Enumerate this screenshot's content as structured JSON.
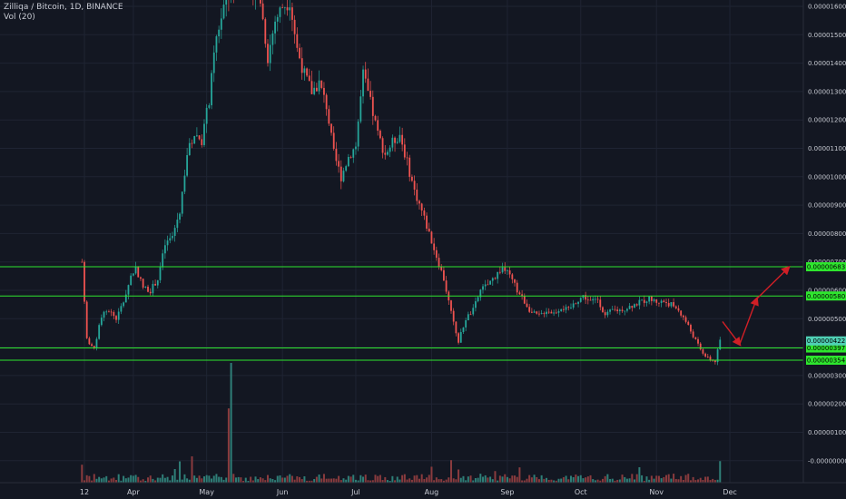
{
  "legend": {
    "title": "Zilliqa / Bitcoin, 1D, BINANCE",
    "indicator": "Vol (20)"
  },
  "colors": {
    "background": "#131722",
    "grid": "#1f2433",
    "up": "#26a69a",
    "down": "#ef5350",
    "up_volume": "#2f7f78",
    "down_volume": "#8a3b3e",
    "level_line": "#2ee62e",
    "level_label_bg": "#2ee62e",
    "current_label_bg": "#4fd0b5",
    "arrow": "#d11f26"
  },
  "chart_data": {
    "type": "candlestick",
    "symbol": "Zilliqa / Bitcoin",
    "interval": "1D",
    "exchange": "BINANCE",
    "price_axis_ticks": [
      "0.00001600",
      "0.00001500",
      "0.00001400",
      "0.00001300",
      "0.00001200",
      "0.00001100",
      "0.00001000",
      "0.00000900",
      "0.00000800",
      "0.00000700",
      "0.00000600",
      "0.00000500",
      "0.00000400",
      "0.00000300",
      "0.00000200",
      "0.00000100",
      "-0.00000000"
    ],
    "time_axis_ticks": [
      "12",
      "Apr",
      "May",
      "Jun",
      "Jul",
      "Aug",
      "Sep",
      "Oct",
      "Nov",
      "Dec"
    ],
    "horizontal_levels": [
      {
        "label": "0.00000683",
        "value": 6.83e-06
      },
      {
        "label": "0.00000580",
        "value": 5.8e-06
      },
      {
        "label": "0.00000397",
        "value": 3.97e-06
      },
      {
        "label": "0.00000354",
        "value": 3.54e-06
      }
    ],
    "current_price": {
      "label": "0.00000422",
      "value": 4.22e-06
    },
    "close_path": [
      {
        "date": "2018-03-11",
        "close": 7e-06
      },
      {
        "date": "2018-03-13",
        "close": 4.3e-06
      },
      {
        "date": "2018-03-16",
        "close": 3.9e-06
      },
      {
        "date": "2018-03-19",
        "close": 5.1e-06
      },
      {
        "date": "2018-03-22",
        "close": 5.3e-06
      },
      {
        "date": "2018-03-25",
        "close": 5e-06
      },
      {
        "date": "2018-03-28",
        "close": 5.6e-06
      },
      {
        "date": "2018-03-31",
        "close": 6.5e-06
      },
      {
        "date": "2018-04-02",
        "close": 6.8e-06
      },
      {
        "date": "2018-04-05",
        "close": 6.1e-06
      },
      {
        "date": "2018-04-08",
        "close": 6e-06
      },
      {
        "date": "2018-04-11",
        "close": 6.4e-06
      },
      {
        "date": "2018-04-14",
        "close": 7.6e-06
      },
      {
        "date": "2018-04-17",
        "close": 7.9e-06
      },
      {
        "date": "2018-04-20",
        "close": 8.8e-06
      },
      {
        "date": "2018-04-23",
        "close": 1.08e-05
      },
      {
        "date": "2018-04-26",
        "close": 1.15e-05
      },
      {
        "date": "2018-04-29",
        "close": 1.13e-05
      },
      {
        "date": "2018-05-02",
        "close": 1.27e-05
      },
      {
        "date": "2018-05-05",
        "close": 1.49e-05
      },
      {
        "date": "2018-05-08",
        "close": 1.6e-05
      },
      {
        "date": "2018-05-11",
        "close": 1.64e-05
      },
      {
        "date": "2018-05-14",
        "close": 1.68e-05
      },
      {
        "date": "2018-05-17",
        "close": 1.7e-05
      },
      {
        "date": "2018-05-20",
        "close": 1.66e-05
      },
      {
        "date": "2018-05-23",
        "close": 1.62e-05
      },
      {
        "date": "2018-05-26",
        "close": 1.42e-05
      },
      {
        "date": "2018-05-29",
        "close": 1.55e-05
      },
      {
        "date": "2018-06-01",
        "close": 1.6e-05
      },
      {
        "date": "2018-06-04",
        "close": 1.62e-05
      },
      {
        "date": "2018-06-07",
        "close": 1.45e-05
      },
      {
        "date": "2018-06-10",
        "close": 1.36e-05
      },
      {
        "date": "2018-06-13",
        "close": 1.3e-05
      },
      {
        "date": "2018-06-16",
        "close": 1.33e-05
      },
      {
        "date": "2018-06-19",
        "close": 1.25e-05
      },
      {
        "date": "2018-06-22",
        "close": 1.08e-05
      },
      {
        "date": "2018-06-25",
        "close": 1e-05
      },
      {
        "date": "2018-06-28",
        "close": 1.07e-05
      },
      {
        "date": "2018-07-01",
        "close": 1.11e-05
      },
      {
        "date": "2018-07-04",
        "close": 1.36e-05
      },
      {
        "date": "2018-07-07",
        "close": 1.26e-05
      },
      {
        "date": "2018-07-10",
        "close": 1.15e-05
      },
      {
        "date": "2018-07-13",
        "close": 1.08e-05
      },
      {
        "date": "2018-07-16",
        "close": 1.12e-05
      },
      {
        "date": "2018-07-19",
        "close": 1.15e-05
      },
      {
        "date": "2018-07-22",
        "close": 1.05e-05
      },
      {
        "date": "2018-07-25",
        "close": 9.5e-06
      },
      {
        "date": "2018-07-28",
        "close": 8.8e-06
      },
      {
        "date": "2018-07-31",
        "close": 8e-06
      },
      {
        "date": "2018-08-03",
        "close": 7.2e-06
      },
      {
        "date": "2018-08-06",
        "close": 6.4e-06
      },
      {
        "date": "2018-08-09",
        "close": 5.2e-06
      },
      {
        "date": "2018-08-12",
        "close": 4.2e-06
      },
      {
        "date": "2018-08-15",
        "close": 5e-06
      },
      {
        "date": "2018-08-18",
        "close": 5.3e-06
      },
      {
        "date": "2018-08-21",
        "close": 6e-06
      },
      {
        "date": "2018-08-24",
        "close": 6.2e-06
      },
      {
        "date": "2018-08-27",
        "close": 6.5e-06
      },
      {
        "date": "2018-08-30",
        "close": 6.8e-06
      },
      {
        "date": "2018-09-02",
        "close": 6.5e-06
      },
      {
        "date": "2018-09-05",
        "close": 6e-06
      },
      {
        "date": "2018-09-08",
        "close": 5.6e-06
      },
      {
        "date": "2018-09-11",
        "close": 5.2e-06
      },
      {
        "date": "2018-09-14",
        "close": 5.1e-06
      },
      {
        "date": "2018-09-17",
        "close": 5.3e-06
      },
      {
        "date": "2018-09-20",
        "close": 5.2e-06
      },
      {
        "date": "2018-09-23",
        "close": 5.4e-06
      },
      {
        "date": "2018-09-26",
        "close": 5.3e-06
      },
      {
        "date": "2018-09-29",
        "close": 5.6e-06
      },
      {
        "date": "2018-10-02",
        "close": 5.8e-06
      },
      {
        "date": "2018-10-05",
        "close": 5.6e-06
      },
      {
        "date": "2018-10-08",
        "close": 5.7e-06
      },
      {
        "date": "2018-10-11",
        "close": 5.1e-06
      },
      {
        "date": "2018-10-14",
        "close": 5.3e-06
      },
      {
        "date": "2018-10-17",
        "close": 5.3e-06
      },
      {
        "date": "2018-10-20",
        "close": 5.4e-06
      },
      {
        "date": "2018-10-23",
        "close": 5.5e-06
      },
      {
        "date": "2018-10-26",
        "close": 5.6e-06
      },
      {
        "date": "2018-10-29",
        "close": 5.7e-06
      },
      {
        "date": "2018-11-01",
        "close": 5.6e-06
      },
      {
        "date": "2018-11-04",
        "close": 5.6e-06
      },
      {
        "date": "2018-11-07",
        "close": 5.5e-06
      },
      {
        "date": "2018-11-10",
        "close": 5.3e-06
      },
      {
        "date": "2018-11-13",
        "close": 4.9e-06
      },
      {
        "date": "2018-11-16",
        "close": 4.4e-06
      },
      {
        "date": "2018-11-19",
        "close": 3.9e-06
      },
      {
        "date": "2018-11-22",
        "close": 3.6e-06
      },
      {
        "date": "2018-11-25",
        "close": 3.5e-06
      },
      {
        "date": "2018-11-27",
        "close": 4.22e-06
      }
    ],
    "volume_spikes": [
      {
        "date": "2018-03-11",
        "relative": 0.15
      },
      {
        "date": "2018-04-25",
        "relative": 0.22
      },
      {
        "date": "2018-05-10",
        "relative": 0.62
      },
      {
        "date": "2018-05-11",
        "relative": 1.0
      },
      {
        "date": "2018-08-12",
        "relative": 0.11
      },
      {
        "date": "2018-11-27",
        "relative": 0.18
      }
    ],
    "projection_arrows": [
      {
        "date": "2018-11-29",
        "from": 4.9e-06,
        "to": 4.1e-06
      },
      {
        "date": "2018-12-04",
        "from": 4.2e-06,
        "to": 5.7e-06
      },
      {
        "date": "2018-12-10",
        "from": 6e-06,
        "to": 6.6e-06
      }
    ]
  }
}
